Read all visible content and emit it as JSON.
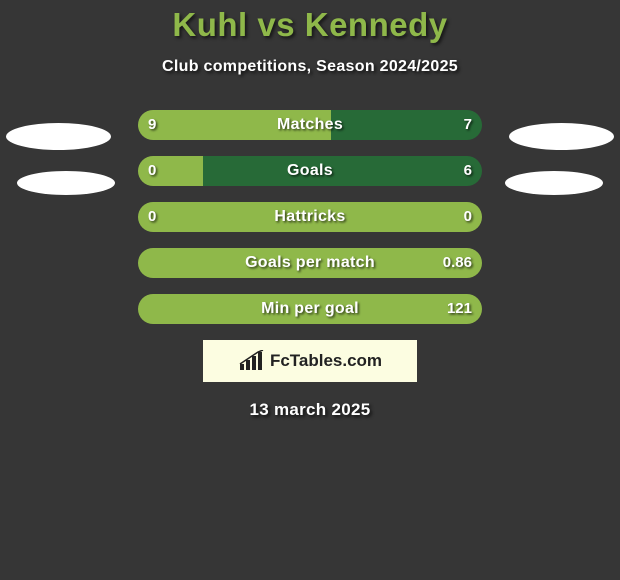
{
  "title": {
    "text": "Kuhl vs Kennedy",
    "color": "#8fb84a",
    "fontsize": 33
  },
  "subtitle": {
    "text": "Club competitions, Season 2024/2025",
    "color": "#ffffff",
    "fontsize": 16
  },
  "date": {
    "text": "13 march 2025",
    "color": "#ffffff",
    "fontsize": 17
  },
  "background_color": "#363636",
  "label_color": "#ffffff",
  "value_color": "#ffffff",
  "label_fontsize": 16,
  "value_fontsize": 15,
  "player_left_color": "#8fb84a",
  "player_right_color": "#276a37",
  "brand": {
    "text": "FcTables.com",
    "bg": "#fcfde1",
    "text_color": "#222222",
    "fontsize": 17
  },
  "club_oval_bg": "#ffffff",
  "rows": [
    {
      "label": "Matches",
      "left_value": "9",
      "right_value": "7",
      "left_pct": 56,
      "right_pct": 44
    },
    {
      "label": "Goals",
      "left_value": "0",
      "right_value": "6",
      "left_pct": 19,
      "right_pct": 81
    },
    {
      "label": "Hattricks",
      "left_value": "0",
      "right_value": "0",
      "left_pct": 100,
      "right_pct": 0
    },
    {
      "label": "Goals per match",
      "left_value": "",
      "right_value": "0.86",
      "left_pct": 100,
      "right_pct": 0
    },
    {
      "label": "Min per goal",
      "left_value": "",
      "right_value": "121",
      "left_pct": 100,
      "right_pct": 0
    }
  ]
}
